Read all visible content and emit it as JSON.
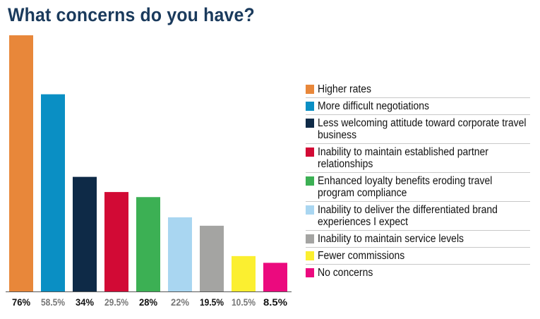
{
  "title": "What concerns do you have?",
  "chart_data": {
    "type": "bar",
    "title": "What concerns do you have?",
    "xlabel": "",
    "ylabel": "",
    "ylim": [
      0,
      76
    ],
    "grid": false,
    "legend_position": "right",
    "categories": [
      "Higher rates",
      "More difficult negotiations",
      "Less welcoming attitude toward corporate travel business",
      "Inability to maintain established partner relationships",
      "Enhanced loyalty benefits eroding travel program compliance",
      "Inability to deliver the differentiated brand experiences I expect",
      "Inability to maintain service levels",
      "Fewer commissions",
      "No concerns"
    ],
    "values": [
      76,
      58.5,
      34,
      29.5,
      28,
      22,
      19.5,
      10.5,
      8.5
    ],
    "value_labels": [
      "76%",
      "58.5%",
      "34%",
      "29.5%",
      "28%",
      "22%",
      "19.5%",
      "10.5%",
      "8.5%"
    ],
    "colors": [
      "#e8873a",
      "#0a8fc4",
      "#0e2a47",
      "#d20a35",
      "#3cb054",
      "#a9d6f1",
      "#a4a4a2",
      "#fbef30",
      "#eb0a7e"
    ],
    "label_colors": [
      "#111111",
      "#777777",
      "#111111",
      "#777777",
      "#111111",
      "#777777",
      "#111111",
      "#777777",
      "#111111"
    ]
  }
}
